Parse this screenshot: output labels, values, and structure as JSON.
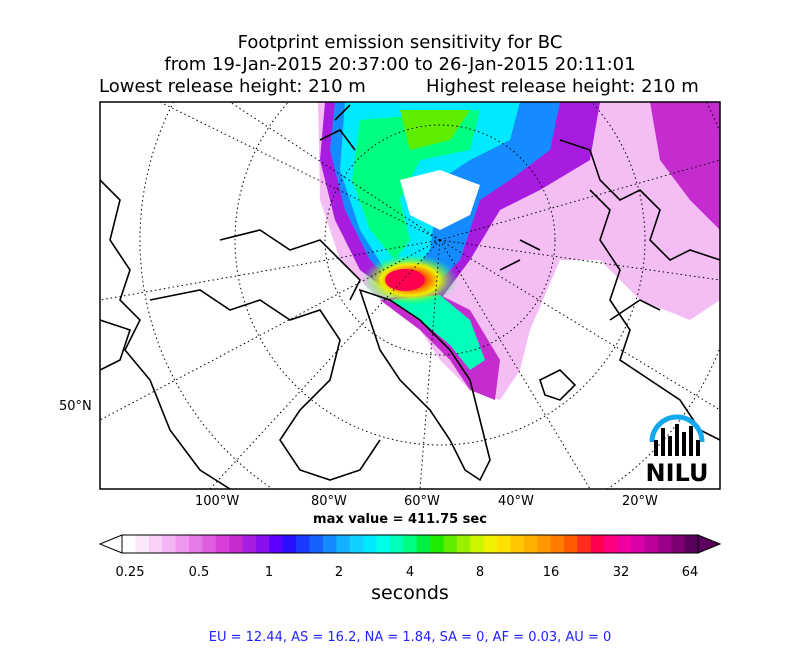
{
  "title": {
    "line1": "Footprint emission sensitivity for BC",
    "line2": "from 19-Jan-2015 20:37:00 to 26-Jan-2015 20:11:01",
    "lowest": "Lowest release height: 210 m",
    "highest": "Highest release height: 210 m"
  },
  "map": {
    "lon_labels": [
      "100°W",
      "80°W",
      "60°W",
      "40°W",
      "20°W"
    ],
    "lat_labels": [
      "50°N"
    ],
    "max_value_text": "max value = 411.75 sec",
    "logo_text": "NILU",
    "logo_icon": "nilu-arc-logo-icon"
  },
  "colorbar": {
    "tick_labels": [
      "0.25",
      "0.5",
      "1",
      "2",
      "4",
      "8",
      "16",
      "32",
      "64"
    ],
    "title": "seconds",
    "colors": [
      "#ffffff",
      "#fce8fc",
      "#f8d0f8",
      "#f3b6f3",
      "#ee98ee",
      "#e67ae6",
      "#df5cdf",
      "#d640d6",
      "#c52cd0",
      "#a81ce0",
      "#8a0ff0",
      "#5c00ff",
      "#2a10ff",
      "#1a3aff",
      "#1662ff",
      "#148cff",
      "#12b0ff",
      "#10d0ff",
      "#00eaff",
      "#00ffea",
      "#00ffb8",
      "#00ff80",
      "#00f040",
      "#20ea00",
      "#60ee00",
      "#9af000",
      "#cdf500",
      "#f0f000",
      "#ffe000",
      "#ffc800",
      "#ffb000",
      "#ff9800",
      "#ff7c00",
      "#ff5a00",
      "#ff2c20",
      "#ff0050",
      "#ff0080",
      "#f000a0",
      "#dc00a8",
      "#c0009a",
      "#9c0088",
      "#7c0074",
      "#5a005c"
    ]
  },
  "footer": "EU = 12.44,  AS = 16.2,  NA = 1.84,  SA = 0,  AF = 0.03,  AU = 0"
}
